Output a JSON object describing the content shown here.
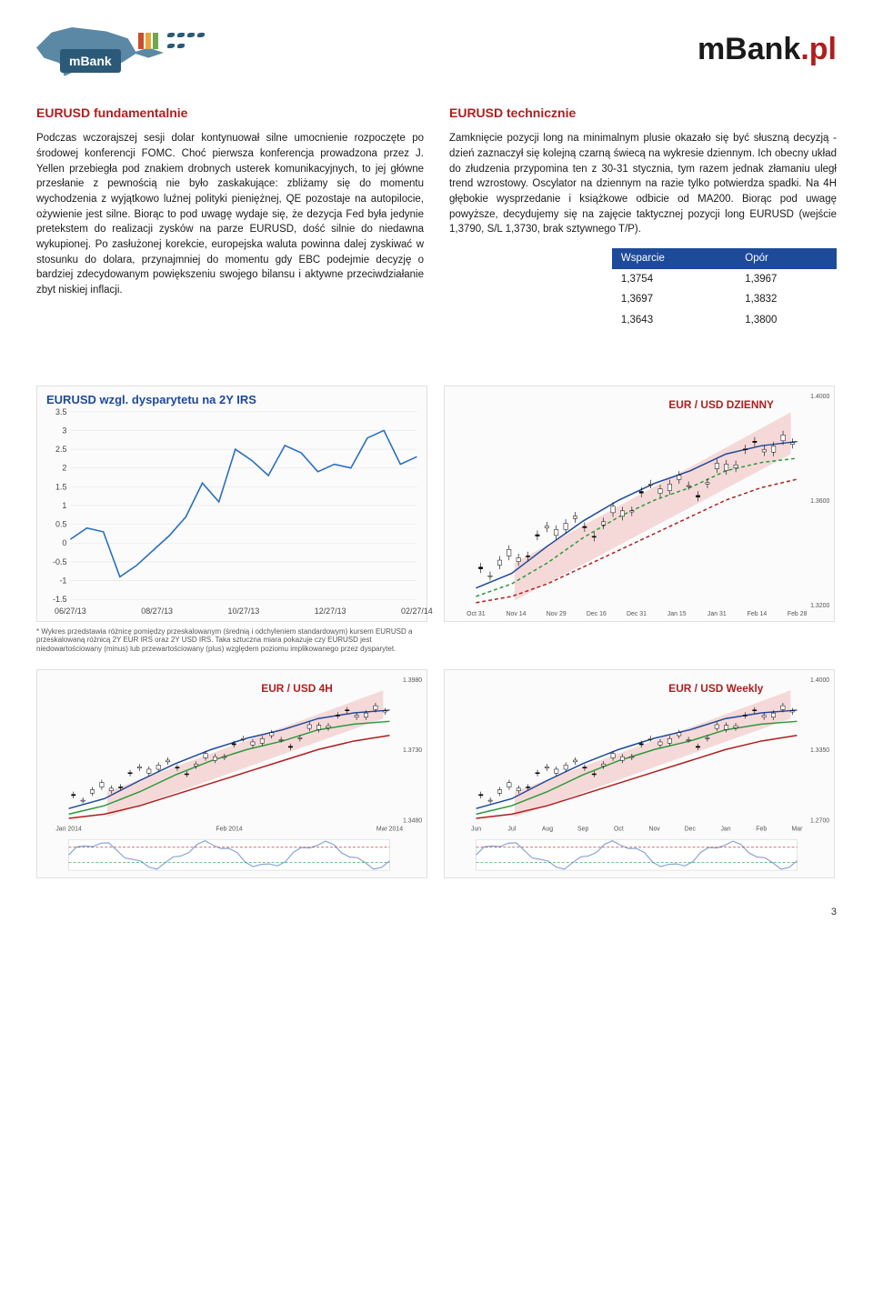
{
  "brand": {
    "badge": "mBank",
    "site": "mBank",
    "tld": ".pl"
  },
  "left": {
    "title": "EURUSD fundamentalnie",
    "body": "Podczas wczorajszej sesji dolar kontynuował silne umocnienie rozpoczęte po środowej konferencji FOMC. Choć pierwsza konferencja prowadzona przez J. Yellen przebiegła pod znakiem drobnych usterek komunikacyjnych, to jej główne przesłanie z pewnością nie było zaskakujące: zbliżamy się do momentu wychodzenia z wyjątkowo luźnej polityki pieniężnej, QE pozostaje na autopilocie, ożywienie jest silne. Biorąc to pod uwagę wydaje się, że dezycja Fed była jedynie pretekstem do realizacji zysków na parze EURUSD, dość silnie do niedawna wykupionej. Po zasłużonej korekcie, europejska waluta powinna dalej zyskiwać w stosunku do dolara, przynajmniej do momentu gdy EBC podejmie decyzję o bardziej zdecydowanym powiększeniu swojego bilansu i aktywne przeciwdziałanie zbyt niskiej inflacji."
  },
  "right": {
    "title": "EURUSD technicznie",
    "body": "Zamknięcie pozycji long na minimalnym plusie okazało się być słuszną decyzją - dzień zaznaczył się kolejną czarną świecą na wykresie dziennym. Ich obecny układ do złudzenia przypomina ten z 30-31 stycznia, tym razem jednak złamaniu uległ trend wzrostowy. Oscylator na dziennym na razie tylko potwierdza spadki. Na 4H głębokie wysprzedanie i książkowe odbicie od MA200. Biorąc pod uwagę powyższe, decydujemy się na zajęcie taktycznej pozycji long EURUSD (wejście 1,3790, S/L 1,3730, brak sztywnego T/P)."
  },
  "sr": {
    "head_support": "Wsparcie",
    "head_resist": "Opór",
    "rows": [
      {
        "s": "1,3754",
        "r": "1,3967"
      },
      {
        "s": "1,3697",
        "r": "1,3832"
      },
      {
        "s": "1,3643",
        "r": "1,3800"
      }
    ]
  },
  "chart1": {
    "title": "EURUSD wzgl. dysparytetu na 2Y IRS",
    "title_color": "#1e4a9a",
    "title_fontsize": 13,
    "type": "line",
    "xlabels": [
      "06/27/13",
      "08/27/13",
      "10/27/13",
      "12/27/13",
      "02/27/14"
    ],
    "ylim": [
      -1.5,
      3.5
    ],
    "yticks": [
      -1.5,
      -1,
      -0.5,
      0,
      0.5,
      1,
      1.5,
      2,
      2.5,
      3,
      3.5
    ],
    "line_color": "#2a6fbf",
    "line_width": 1.5,
    "background": "#ffffff",
    "grid_color": "#e5e5e5",
    "series": [
      0.1,
      0.4,
      0.3,
      -0.9,
      -0.6,
      -0.2,
      0.2,
      0.7,
      1.6,
      1.1,
      2.5,
      2.2,
      1.8,
      2.6,
      2.4,
      1.9,
      2.1,
      2.0,
      2.8,
      3.0,
      2.1,
      2.3
    ],
    "footnote": "* Wykres przedstawia różnicę pomiędzy przeskalowanym (średnią i odchyleniem standardowym) kursem EURUSD a przeskalowaną różnicą 2Y EUR IRS oraz 2Y USD IRS. Taka sztuczna miara pokazuje czy EURUSD jest niedowartościowany (minus) lub przewartościowany (plus) względem poziomu implikowanego przez dysparytet."
  },
  "chart2": {
    "title": "EUR / USD DZIENNY",
    "title_color": "#b01e1e",
    "type": "candlestick",
    "xlabels": [
      "Oct 31",
      "Nov 14",
      "Nov 29",
      "Dec 16",
      "Dec 31",
      "Jan 15",
      "Jan 31",
      "Feb 14",
      "Feb 28"
    ],
    "ylim": [
      1.32,
      1.4
    ],
    "price_now": 1.3804,
    "channel_color": "#f0b8b8",
    "ma_colors": [
      "#1e4a9a",
      "#2a9a3a",
      "#b01e1e"
    ],
    "ma_dash": [
      "solid",
      "dashed",
      "dashed"
    ],
    "background": "#ffffff"
  },
  "chart3": {
    "title": "EUR / USD 4H",
    "title_color": "#b01e1e",
    "type": "candlestick",
    "xlabels": [
      "Jan 2014",
      "Feb 2014",
      "Mar 2014"
    ],
    "ylim": [
      1.348,
      1.398
    ],
    "channel_color": "#f0b8b8",
    "ma_colors": [
      "#1e4a9a",
      "#2a9a3a",
      "#b01e1e"
    ],
    "osc_color": "#8aa6d6",
    "background": "#ffffff"
  },
  "chart4": {
    "title": "EUR / USD Weekly",
    "title_color": "#b01e1e",
    "type": "candlestick",
    "xlabels": [
      "Jun",
      "Jul",
      "Aug",
      "Sep",
      "Oct",
      "Nov",
      "Dec",
      "Jan",
      "Feb",
      "Mar"
    ],
    "ylim": [
      1.27,
      1.4
    ],
    "channel_color": "#f0b8b8",
    "ma_colors": [
      "#1e4a9a",
      "#2a9a3a",
      "#b01e1e"
    ],
    "osc_color": "#8aa6d6",
    "background": "#ffffff"
  },
  "pagenum": "3"
}
